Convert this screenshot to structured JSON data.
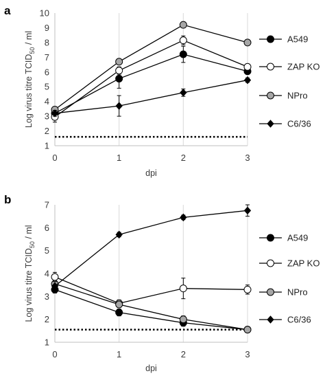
{
  "chart_data": [
    {
      "type": "line",
      "panel_label": "a",
      "xlabel": "dpi",
      "ylabel_main": "Log virus titre TCID",
      "ylabel_sub": "50",
      "ylabel_tail": " / ml",
      "x": [
        0,
        1,
        2,
        3
      ],
      "xlim": [
        0,
        3
      ],
      "ylim": [
        1,
        10
      ],
      "yticks": [
        1,
        2,
        3,
        4,
        5,
        6,
        7,
        8,
        9,
        10
      ],
      "grid": "vertical",
      "detection_limit": 1.6,
      "legend_position": "right",
      "series": [
        {
          "name": "A549",
          "marker": "circle",
          "fill": "#000000",
          "values": [
            3.2,
            5.55,
            7.2,
            6.05
          ],
          "errors": [
            0.2,
            0.65,
            0.55,
            0.15
          ]
        },
        {
          "name": "ZAP KO",
          "marker": "circle",
          "fill": "#ffffff",
          "values": [
            2.95,
            6.1,
            8.15,
            6.35
          ],
          "errors": [
            0.35,
            0.25,
            0.3,
            0.15
          ]
        },
        {
          "name": "NPro",
          "marker": "circle",
          "fill": "#a6a6a6",
          "values": [
            3.45,
            6.7,
            9.2,
            8.0
          ],
          "errors": [
            0.1,
            0.1,
            0.1,
            0.1
          ]
        },
        {
          "name": "C6/36",
          "marker": "diamond",
          "fill": "#000000",
          "values": [
            3.2,
            3.7,
            4.6,
            5.45
          ],
          "errors": [
            0.2,
            0.7,
            0.25,
            0.15
          ]
        }
      ]
    },
    {
      "type": "line",
      "panel_label": "b",
      "xlabel": "dpi",
      "ylabel_main": "Log virus titre TCID",
      "ylabel_sub": "50",
      "ylabel_tail": " / ml",
      "x": [
        0,
        1,
        2,
        3
      ],
      "xlim": [
        0,
        3
      ],
      "ylim": [
        1,
        7
      ],
      "yticks": [
        1,
        2,
        3,
        4,
        5,
        6,
        7
      ],
      "grid": "vertical",
      "detection_limit": 1.55,
      "legend_position": "right",
      "series": [
        {
          "name": "A549",
          "marker": "circle",
          "fill": "#000000",
          "values": [
            3.3,
            2.3,
            1.85,
            1.55
          ],
          "errors": [
            0.15,
            0.15,
            0.15,
            0.05
          ]
        },
        {
          "name": "ZAP KO",
          "marker": "circle",
          "fill": "#ffffff",
          "values": [
            3.85,
            2.7,
            3.35,
            3.3
          ],
          "errors": [
            0.2,
            0.15,
            0.45,
            0.2
          ]
        },
        {
          "name": "NPro",
          "marker": "circle",
          "fill": "#a6a6a6",
          "values": [
            3.55,
            2.65,
            2.0,
            1.55
          ],
          "errors": [
            0.1,
            0.1,
            0.15,
            0.05
          ]
        },
        {
          "name": "C6/36",
          "marker": "diamond",
          "fill": "#000000",
          "values": [
            3.45,
            5.7,
            6.45,
            6.75
          ],
          "errors": [
            0.2,
            0.1,
            0.1,
            0.25
          ]
        }
      ]
    }
  ]
}
